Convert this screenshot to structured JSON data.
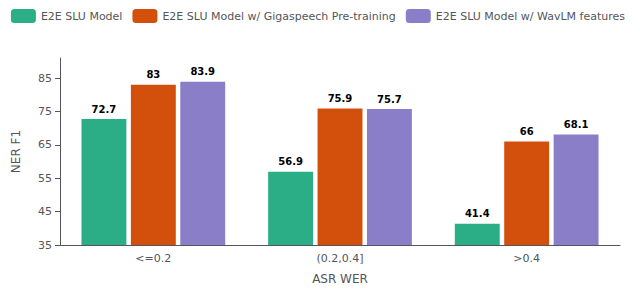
{
  "chart_data": {
    "type": "bar",
    "xlabel": "ASR WER",
    "ylabel": "NER F1",
    "categories": [
      "<=0.2",
      "(0.2,0.4]",
      ">0.4"
    ],
    "series": [
      {
        "name": "E2E SLU Model",
        "color": "#2BAE85",
        "values": [
          72.7,
          56.9,
          41.4
        ]
      },
      {
        "name": "E2E SLU Model w/ Gigaspeech Pre-training",
        "color": "#D2500C",
        "values": [
          83,
          75.9,
          66
        ]
      },
      {
        "name": "E2E SLU Model w/ WavLM features",
        "color": "#8B7EC8",
        "values": [
          83.9,
          75.7,
          68.1
        ]
      }
    ],
    "ylim": [
      35,
      91
    ],
    "yticks": [
      35,
      45,
      55,
      65,
      75,
      85
    ],
    "data_labels": true,
    "grid": false,
    "legend": "upper right"
  }
}
